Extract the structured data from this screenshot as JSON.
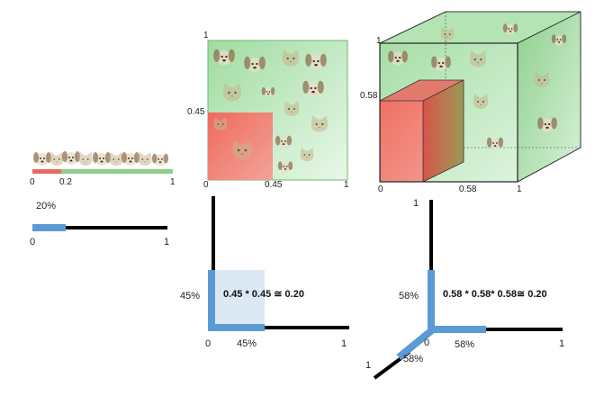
{
  "panel_1d": {
    "axis": {
      "start": "0",
      "mid": "0.2",
      "end": "1"
    },
    "bar": {
      "percent_label": "20%",
      "start": "0",
      "end": "1",
      "fraction": 0.2
    }
  },
  "panel_2d": {
    "square": {
      "top": "1",
      "side": "0.45",
      "origin": "0",
      "bottom_mid": "0.45",
      "bottom_end": "1"
    },
    "lbar": {
      "left_pct": "45%",
      "origin": "0",
      "bottom_pct": "45%",
      "end": "1",
      "equation": "0.45 * 0.45 ≅ 0.20",
      "fraction": 0.45
    }
  },
  "panel_3d": {
    "cube": {
      "top_left": "1",
      "side": "0.58",
      "origin": "0",
      "bottom_mid": "0.58",
      "bottom_end": "1"
    },
    "ybar": {
      "top": "1",
      "left_pct": "58%",
      "origin": "0",
      "right_pct": "58%",
      "right_end": "1",
      "diag_pct": "58%",
      "diag_end": "1",
      "equation": "0.58 * 0.58* 0.58≅ 0.20",
      "fraction": 0.58
    }
  },
  "colors": {
    "bar_blue": "#5b9bd5",
    "fill_light_blue": "#dde8f5",
    "green": "#8fd08f",
    "red": "#e86a5f"
  },
  "icons": [
    "cat-face-icon",
    "puppy-face-icon"
  ]
}
